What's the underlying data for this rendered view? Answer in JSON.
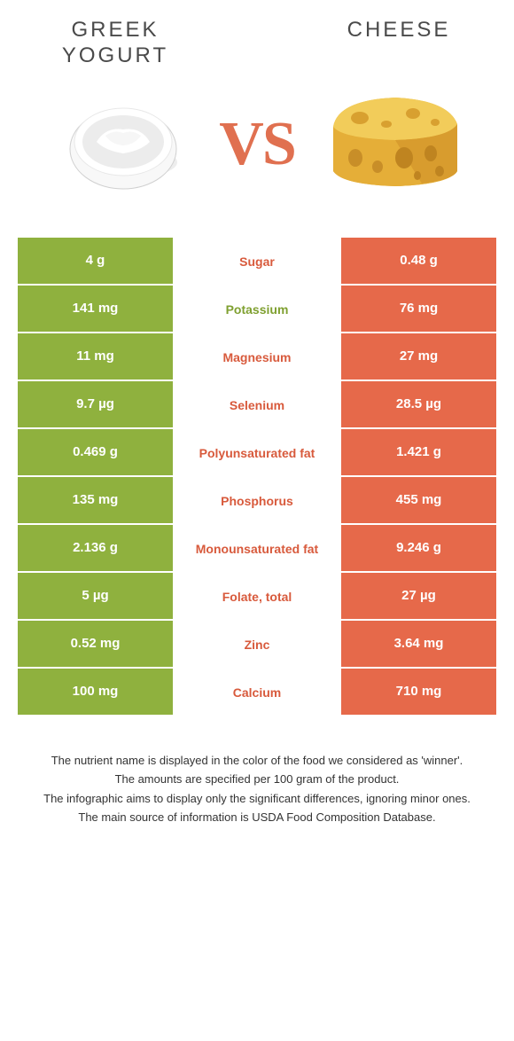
{
  "colors": {
    "left": "#8fb13e",
    "right": "#e6694a",
    "left_label": "#7fa030",
    "right_label": "#d85a3c"
  },
  "titles": {
    "left": "GREEK\nYOGURT",
    "right": "CHEESE",
    "vs": "VS"
  },
  "rows": [
    {
      "left": "4 g",
      "label": "Sugar",
      "right": "0.48 g",
      "winner": "right"
    },
    {
      "left": "141 mg",
      "label": "Potassium",
      "right": "76 mg",
      "winner": "left"
    },
    {
      "left": "11 mg",
      "label": "Magnesium",
      "right": "27 mg",
      "winner": "right"
    },
    {
      "left": "9.7 µg",
      "label": "Selenium",
      "right": "28.5 µg",
      "winner": "right"
    },
    {
      "left": "0.469 g",
      "label": "Polyunsaturated fat",
      "right": "1.421 g",
      "winner": "right"
    },
    {
      "left": "135 mg",
      "label": "Phosphorus",
      "right": "455 mg",
      "winner": "right"
    },
    {
      "left": "2.136 g",
      "label": "Monounsaturated fat",
      "right": "9.246 g",
      "winner": "right"
    },
    {
      "left": "5 µg",
      "label": "Folate, total",
      "right": "27 µg",
      "winner": "right"
    },
    {
      "left": "0.52 mg",
      "label": "Zinc",
      "right": "3.64 mg",
      "winner": "right"
    },
    {
      "left": "100 mg",
      "label": "Calcium",
      "right": "710 mg",
      "winner": "right"
    }
  ],
  "footnotes": [
    "The nutrient name is displayed in the color of the food we considered as 'winner'.",
    "The amounts are specified per 100 gram of the product.",
    "The infographic aims to display only the significant differences, ignoring minor ones.",
    "The main source of information is USDA Food Composition Database."
  ]
}
